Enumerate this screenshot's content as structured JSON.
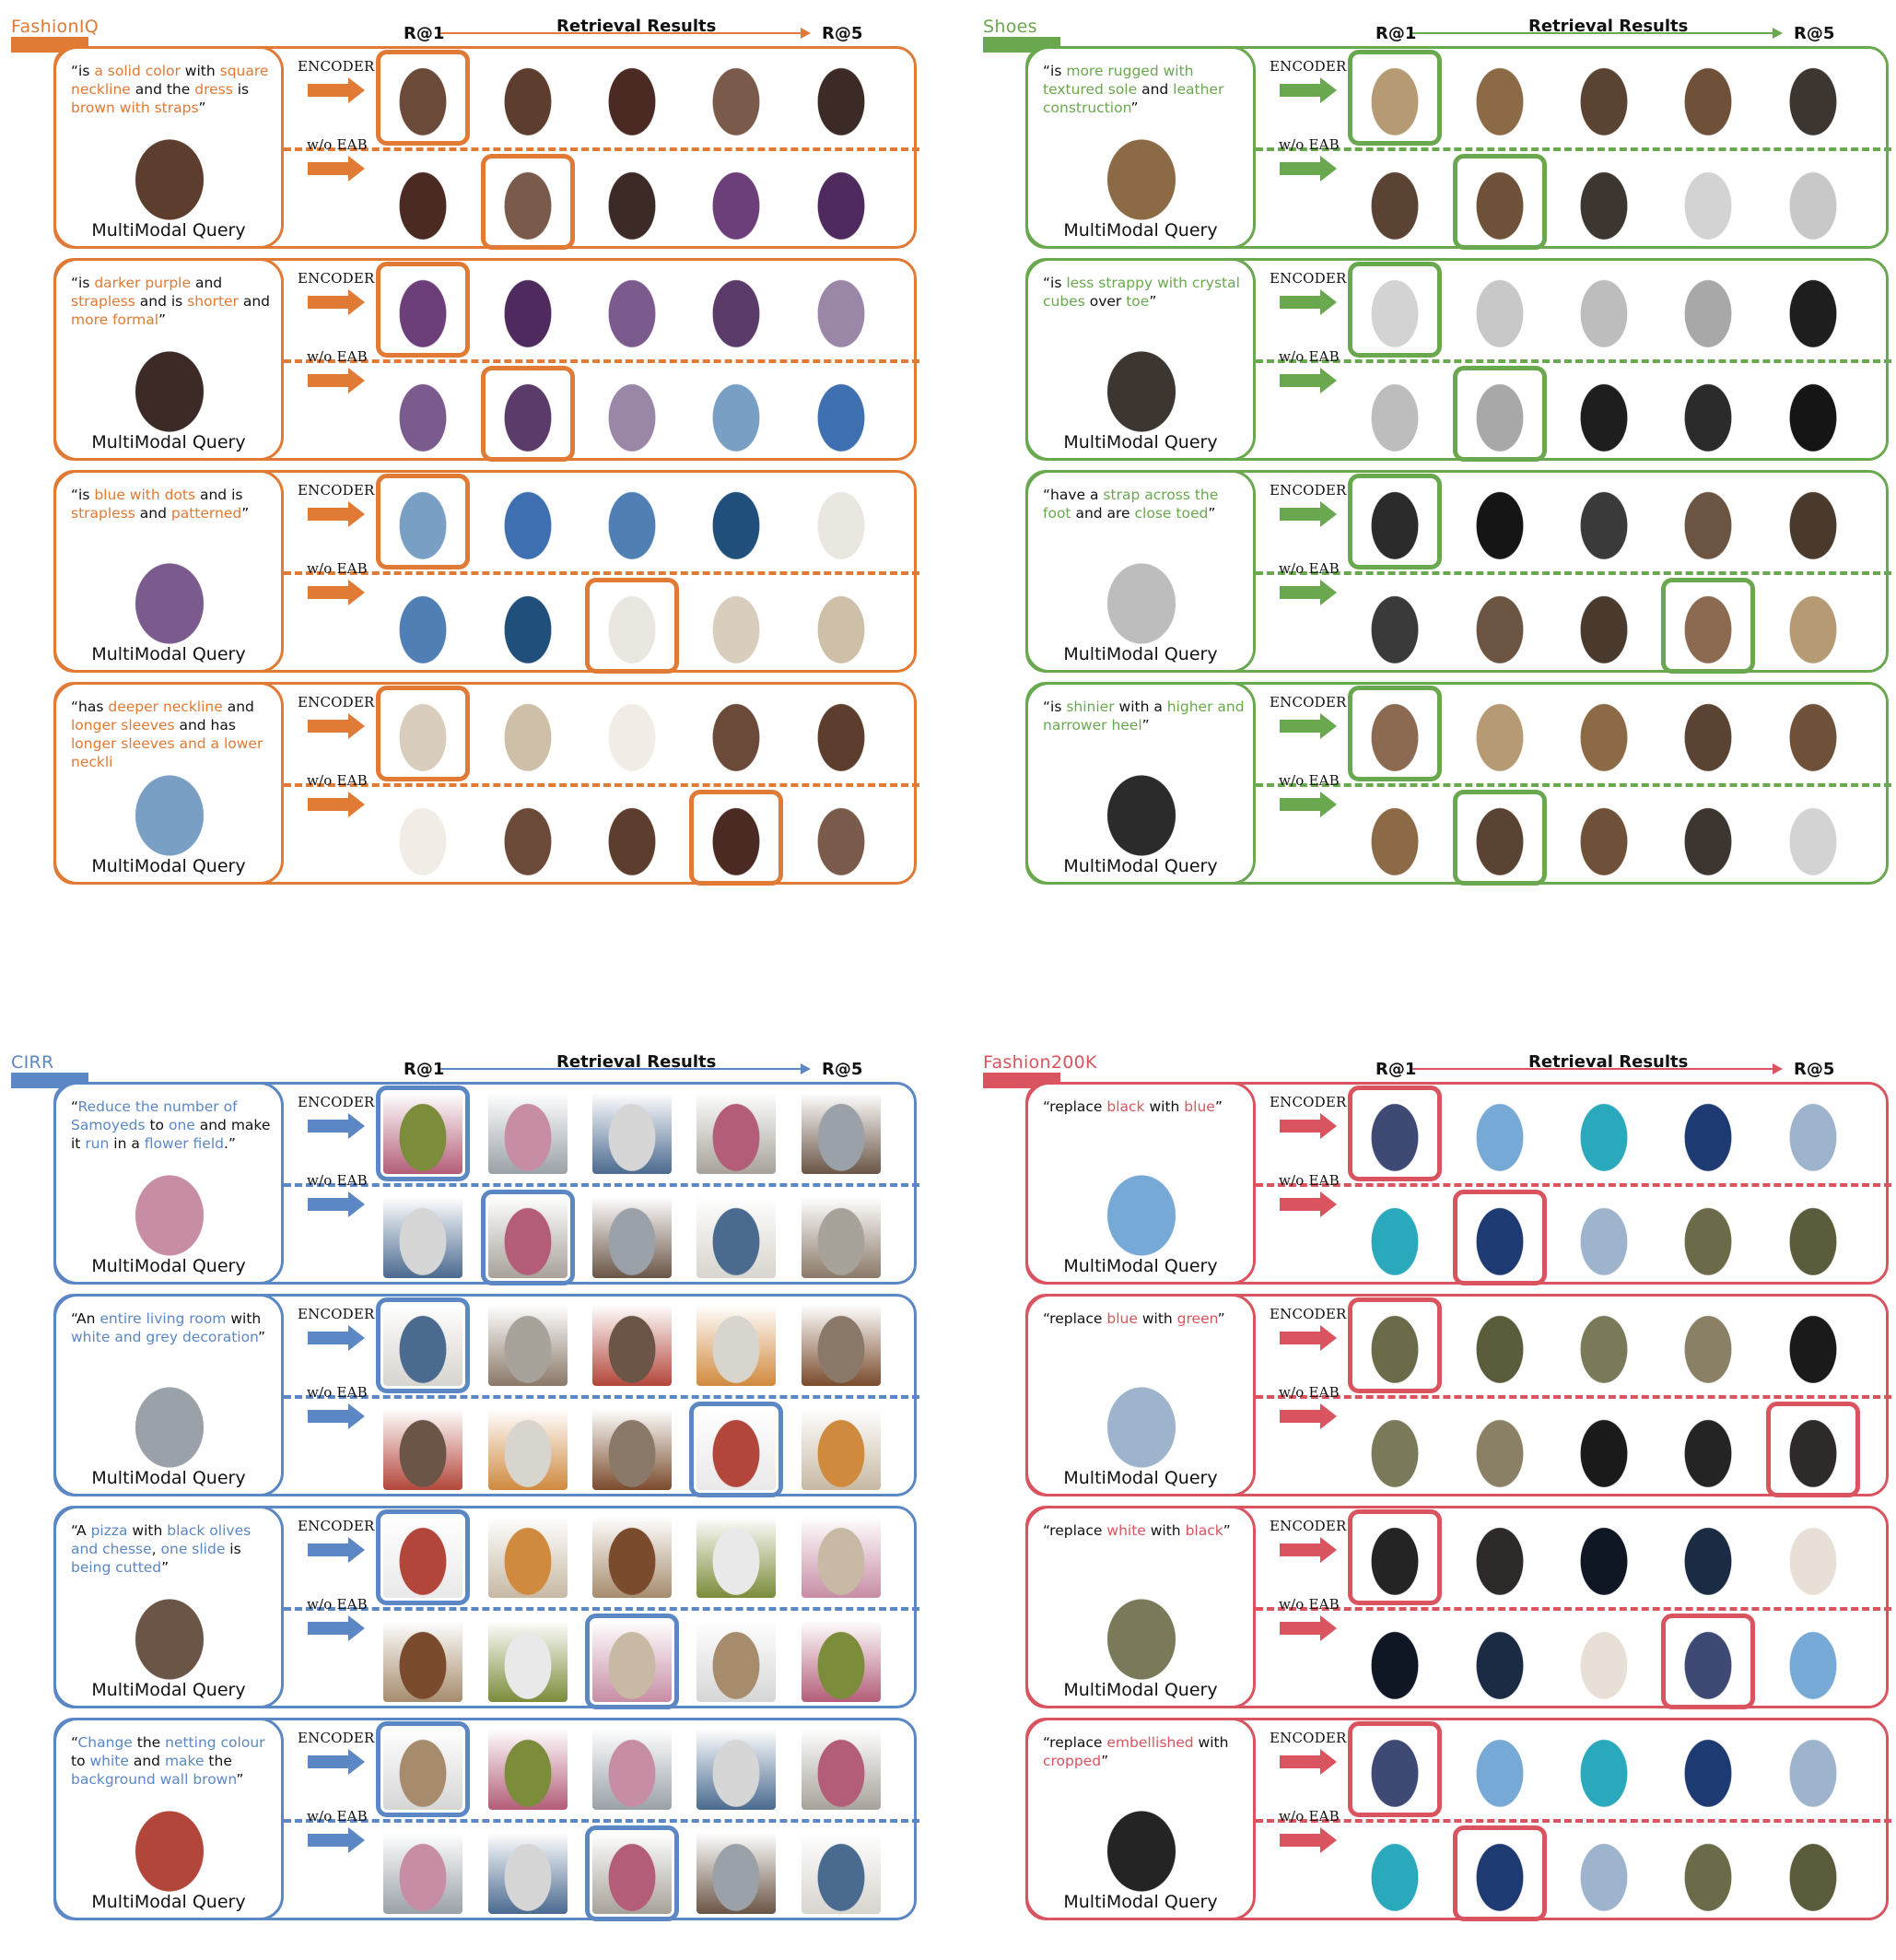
{
  "header": {
    "r1": "R@1",
    "title": "Retrieval Results",
    "r5": "R@5"
  },
  "labels": {
    "encoder": "ENCODER",
    "woeab": "w/o EAB",
    "query": "MultiModal Query"
  },
  "panels": [
    {
      "id": "fashioniq",
      "name": "FashionIQ",
      "color": "#e07a34",
      "rows": [
        {
          "segments": [
            {
              "t": "“is ",
              "h": false
            },
            {
              "t": "a solid color",
              "h": true
            },
            {
              "t": " with ",
              "h": false
            },
            {
              "t": "square neckline",
              "h": true
            },
            {
              "t": " and the ",
              "h": false
            },
            {
              "t": "dress",
              "h": true
            },
            {
              "t": " is ",
              "h": false
            },
            {
              "t": "brown with straps",
              "h": true
            },
            {
              "t": "”",
              "h": false
            }
          ],
          "enc_hit": 1,
          "wo_hit": 2
        },
        {
          "segments": [
            {
              "t": "“is ",
              "h": false
            },
            {
              "t": "darker purple",
              "h": true
            },
            {
              "t": " and ",
              "h": false
            },
            {
              "t": "strapless",
              "h": true
            },
            {
              "t": " and is ",
              "h": false
            },
            {
              "t": "shorter",
              "h": true
            },
            {
              "t": " and ",
              "h": false
            },
            {
              "t": "more formal",
              "h": true
            },
            {
              "t": "”",
              "h": false
            }
          ],
          "enc_hit": 1,
          "wo_hit": 2
        },
        {
          "segments": [
            {
              "t": "“is ",
              "h": false
            },
            {
              "t": "blue with dots",
              "h": true
            },
            {
              "t": " and is ",
              "h": false
            },
            {
              "t": "strapless",
              "h": true
            },
            {
              "t": " and ",
              "h": false
            },
            {
              "t": "patterned",
              "h": true
            },
            {
              "t": "”",
              "h": false
            }
          ],
          "enc_hit": 1,
          "wo_hit": 3
        },
        {
          "segments": [
            {
              "t": "“has ",
              "h": false
            },
            {
              "t": "deeper neckline",
              "h": true
            },
            {
              "t": " and ",
              "h": false
            },
            {
              "t": "longer sleeves",
              "h": true
            },
            {
              "t": " and has ",
              "h": false
            },
            {
              "t": "longer sleeves and a lower neckli",
              "h": true
            },
            {
              "t": "",
              "h": false
            }
          ],
          "enc_hit": 1,
          "wo_hit": 4
        }
      ]
    },
    {
      "id": "shoes",
      "name": "Shoes",
      "color": "#6aa84f",
      "rows": [
        {
          "segments": [
            {
              "t": "“is ",
              "h": false
            },
            {
              "t": "more rugged with textured sole",
              "h": true
            },
            {
              "t": " and ",
              "h": false
            },
            {
              "t": "leather construction",
              "h": true
            },
            {
              "t": "”",
              "h": false
            }
          ],
          "enc_hit": 1,
          "wo_hit": 2
        },
        {
          "segments": [
            {
              "t": "“is ",
              "h": false
            },
            {
              "t": "less strappy with crystal cubes",
              "h": true
            },
            {
              "t": " over ",
              "h": false
            },
            {
              "t": "toe",
              "h": true
            },
            {
              "t": "”",
              "h": false
            }
          ],
          "enc_hit": 1,
          "wo_hit": 2
        },
        {
          "segments": [
            {
              "t": "“have a ",
              "h": false
            },
            {
              "t": "strap across the foot",
              "h": true
            },
            {
              "t": " and are ",
              "h": false
            },
            {
              "t": "close toed",
              "h": true
            },
            {
              "t": "”",
              "h": false
            }
          ],
          "enc_hit": 1,
          "wo_hit": 4
        },
        {
          "segments": [
            {
              "t": "“is ",
              "h": false
            },
            {
              "t": "shinier",
              "h": true
            },
            {
              "t": " with a ",
              "h": false
            },
            {
              "t": "higher and narrower heel",
              "h": true
            },
            {
              "t": "”",
              "h": false
            }
          ],
          "enc_hit": 1,
          "wo_hit": 2
        }
      ]
    },
    {
      "id": "cirr",
      "name": "CIRR",
      "color": "#5b87c5",
      "rows": [
        {
          "segments": [
            {
              "t": "“",
              "h": false
            },
            {
              "t": "Reduce the number of Samoyeds",
              "h": true
            },
            {
              "t": " to ",
              "h": false
            },
            {
              "t": "one",
              "h": true
            },
            {
              "t": " and make it ",
              "h": false
            },
            {
              "t": "run",
              "h": true
            },
            {
              "t": " in a ",
              "h": false
            },
            {
              "t": "flower field",
              "h": true
            },
            {
              "t": ".”",
              "h": false
            }
          ],
          "enc_hit": 1,
          "wo_hit": 2
        },
        {
          "segments": [
            {
              "t": "“An ",
              "h": false
            },
            {
              "t": "entire living room",
              "h": true
            },
            {
              "t": " with ",
              "h": false
            },
            {
              "t": "white and grey decoration",
              "h": true
            },
            {
              "t": "”",
              "h": false
            }
          ],
          "enc_hit": 1,
          "wo_hit": 4
        },
        {
          "segments": [
            {
              "t": "“A ",
              "h": false
            },
            {
              "t": "pizza",
              "h": true
            },
            {
              "t": " with ",
              "h": false
            },
            {
              "t": "black olives and chesse",
              "h": true
            },
            {
              "t": ", ",
              "h": false
            },
            {
              "t": "one slide",
              "h": true
            },
            {
              "t": " is ",
              "h": false
            },
            {
              "t": "being cutted",
              "h": true
            },
            {
              "t": "”",
              "h": false
            }
          ],
          "enc_hit": 1,
          "wo_hit": 3
        },
        {
          "segments": [
            {
              "t": "“",
              "h": false
            },
            {
              "t": "Change",
              "h": true
            },
            {
              "t": " the ",
              "h": false
            },
            {
              "t": "netting colour",
              "h": true
            },
            {
              "t": " to ",
              "h": false
            },
            {
              "t": "white",
              "h": true
            },
            {
              "t": " and ",
              "h": false
            },
            {
              "t": "make",
              "h": true
            },
            {
              "t": " the ",
              "h": false
            },
            {
              "t": "background wall brown",
              "h": true
            },
            {
              "t": "”",
              "h": false
            }
          ],
          "enc_hit": 1,
          "wo_hit": 3
        }
      ]
    },
    {
      "id": "fashion200k",
      "name": "Fashion200K",
      "color": "#d9545e",
      "rows": [
        {
          "segments": [
            {
              "t": "“replace ",
              "h": false
            },
            {
              "t": "black",
              "h": true
            },
            {
              "t": " with ",
              "h": false
            },
            {
              "t": "blue",
              "h": true
            },
            {
              "t": "”",
              "h": false
            }
          ],
          "enc_hit": 1,
          "wo_hit": 2
        },
        {
          "segments": [
            {
              "t": "“replace ",
              "h": false
            },
            {
              "t": "blue",
              "h": true
            },
            {
              "t": " with ",
              "h": false
            },
            {
              "t": "green",
              "h": true
            },
            {
              "t": "”",
              "h": false
            }
          ],
          "enc_hit": 1,
          "wo_hit": 5
        },
        {
          "segments": [
            {
              "t": "“replace ",
              "h": false
            },
            {
              "t": "white",
              "h": true
            },
            {
              "t": " with ",
              "h": false
            },
            {
              "t": "black",
              "h": true
            },
            {
              "t": "”",
              "h": false
            }
          ],
          "enc_hit": 1,
          "wo_hit": 4
        },
        {
          "segments": [
            {
              "t": "“replace ",
              "h": false
            },
            {
              "t": "embellished",
              "h": true
            },
            {
              "t": " with ",
              "h": false
            },
            {
              "t": "cropped",
              "h": true
            },
            {
              "t": "”",
              "h": false
            }
          ],
          "enc_hit": 1,
          "wo_hit": 2
        }
      ]
    }
  ]
}
